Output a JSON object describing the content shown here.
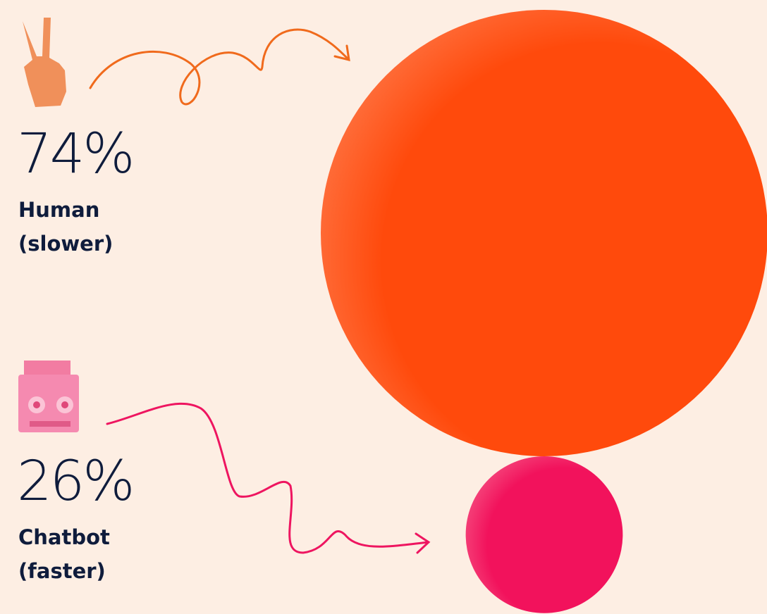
{
  "chart_data": {
    "type": "bubble",
    "categories": [
      "Human (slower)",
      "Chatbot (faster)"
    ],
    "values": [
      74,
      26
    ],
    "value_labels": [
      "74%",
      "26%"
    ],
    "colors": [
      "#ff4a0c",
      "#f2125c"
    ]
  }
}
